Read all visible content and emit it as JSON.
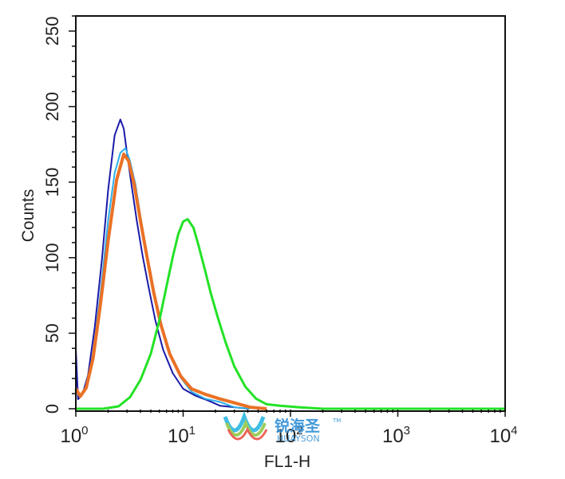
{
  "chart_data": {
    "type": "line",
    "title": "",
    "xlabel": "FL1-H",
    "ylabel": "Counts",
    "x_scale": "log",
    "xlim": [
      1,
      10000
    ],
    "ylim": [
      0,
      260
    ],
    "x_ticks": [
      {
        "base": "10",
        "exp": "0"
      },
      {
        "base": "10",
        "exp": "1"
      },
      {
        "base": "10",
        "exp": "2"
      },
      {
        "base": "10",
        "exp": "3"
      },
      {
        "base": "10",
        "exp": "4"
      }
    ],
    "y_ticks": [
      "0",
      "50",
      "100",
      "150",
      "200",
      "250"
    ],
    "grid": false,
    "legend": "none",
    "series": [
      {
        "color": "#1a1aa8",
        "x": [
          1.0,
          1.05,
          1.15,
          1.3,
          1.5,
          1.75,
          2.0,
          2.3,
          2.6,
          2.8,
          3.0,
          3.3,
          3.7,
          4.2,
          4.8,
          5.5,
          6.5,
          8.0,
          10.0,
          13.0,
          17.0,
          22.0,
          30.0,
          40.0
        ],
        "y": [
          40,
          5,
          8,
          22,
          55,
          100,
          145,
          180,
          190,
          185,
          170,
          150,
          125,
          100,
          78,
          58,
          40,
          25,
          14,
          8,
          4,
          2,
          1,
          0
        ]
      },
      {
        "color": "#2eaee8",
        "x": [
          1.0,
          1.1,
          1.25,
          1.45,
          1.7,
          2.0,
          2.3,
          2.6,
          2.9,
          3.2,
          3.6,
          4.0,
          4.6,
          5.3,
          6.2,
          7.5,
          9.5,
          12.0,
          16.0,
          22.0,
          30.0,
          42.0
        ],
        "y": [
          10,
          7,
          14,
          38,
          78,
          125,
          155,
          168,
          172,
          165,
          150,
          128,
          102,
          78,
          56,
          37,
          22,
          12,
          6,
          3,
          1,
          0
        ]
      },
      {
        "color": "#ea7125",
        "x": [
          1.0,
          1.1,
          1.25,
          1.45,
          1.7,
          2.0,
          2.4,
          2.8,
          3.1,
          3.5,
          4.0,
          4.6,
          5.3,
          6.2,
          7.5,
          9.5,
          12.0,
          16.0,
          22.0,
          30.0,
          42.0,
          60.0
        ],
        "y": [
          12,
          8,
          15,
          35,
          70,
          110,
          150,
          168,
          165,
          150,
          125,
          100,
          76,
          55,
          37,
          23,
          14,
          9,
          5,
          3,
          1,
          0
        ]
      },
      {
        "color": "#23e226",
        "x": [
          1.0,
          1.8,
          2.5,
          3.2,
          4.0,
          5.0,
          6.0,
          7.0,
          8.0,
          9.0,
          10.0,
          11.0,
          12.5,
          14.0,
          16.0,
          18.0,
          21.0,
          25.0,
          30.0,
          38.0,
          48.0,
          60.0,
          80.0,
          120.0,
          200.0,
          1000.0,
          10000.0
        ],
        "y": [
          0,
          0,
          3,
          8,
          18,
          35,
          58,
          82,
          102,
          116,
          123,
          124,
          119,
          108,
          93,
          78,
          60,
          42,
          27,
          15,
          8,
          4,
          2,
          1,
          0,
          0,
          0
        ]
      }
    ]
  },
  "watermark": {
    "cn_text": "锐海圣",
    "en_text": "HUAYSON",
    "tm": "TM"
  }
}
